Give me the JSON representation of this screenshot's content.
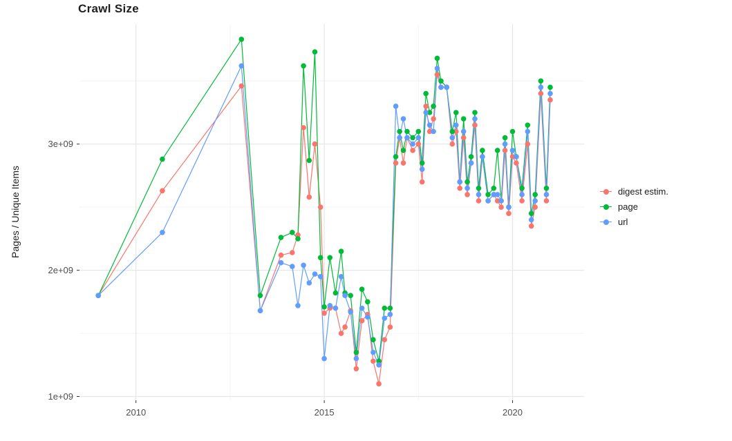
{
  "chart": {
    "title": "Crawl Size",
    "ylabel": "Pages / Unique Items",
    "x_ticks": [
      2010,
      2015,
      2020
    ],
    "x_tick_labels": [
      "2010",
      "2015",
      "2020"
    ],
    "x_minor_ticks": [
      2012.5,
      2017.5
    ],
    "y_ticks": [
      1000000000.0,
      2000000000.0,
      3000000000.0
    ],
    "y_tick_labels": [
      "1e+09",
      "2e+09",
      "3e+09"
    ],
    "y_minor_ticks": [
      1500000000.0,
      2500000000.0,
      3500000000.0
    ],
    "colors": {
      "background": "#ffffff",
      "grid_major": "#e7e7e7",
      "grid_minor": "#f3f3f3",
      "axis_text": "#4d4d4d",
      "tick_mark": "#333333",
      "title": "#1f1f1f"
    }
  },
  "legend": {
    "items": [
      {
        "label": "digest estim.",
        "color": "#F8766D"
      },
      {
        "label": "page",
        "color": "#00BA38"
      },
      {
        "label": "url",
        "color": "#619CFF"
      }
    ]
  },
  "chart_data": {
    "type": "line",
    "title": "Crawl Size",
    "xlabel": "",
    "ylabel": "Pages / Unique Items",
    "xlim": [
      2008.5,
      2021.9
    ],
    "ylim": [
      970000000.0,
      3950000000.0
    ],
    "grid": true,
    "legend_position": "right",
    "x": [
      2009.0,
      2010.7,
      2012.8,
      2013.3,
      2013.85,
      2014.15,
      2014.3,
      2014.45,
      2014.6,
      2014.75,
      2014.9,
      2015.0,
      2015.15,
      2015.3,
      2015.45,
      2015.55,
      2015.7,
      2015.85,
      2016.0,
      2016.15,
      2016.3,
      2016.45,
      2016.6,
      2016.75,
      2016.9,
      2017.0,
      2017.1,
      2017.2,
      2017.35,
      2017.5,
      2017.6,
      2017.7,
      2017.8,
      2017.9,
      2018.0,
      2018.1,
      2018.25,
      2018.4,
      2018.5,
      2018.6,
      2018.7,
      2018.8,
      2018.9,
      2019.0,
      2019.1,
      2019.2,
      2019.35,
      2019.5,
      2019.6,
      2019.7,
      2019.8,
      2019.9,
      2020.0,
      2020.1,
      2020.25,
      2020.4,
      2020.5,
      2020.6,
      2020.75,
      2020.9,
      2021.0
    ],
    "series": [
      {
        "name": "digest estim.",
        "color": "#F8766D",
        "values": [
          1800000000.0,
          2630000000.0,
          3460000000.0,
          1680000000.0,
          2120000000.0,
          2140000000.0,
          2280000000.0,
          3130000000.0,
          2580000000.0,
          3000000000.0,
          2500000000.0,
          1660000000.0,
          1700000000.0,
          1700000000.0,
          1500000000.0,
          1550000000.0,
          1680000000.0,
          1220000000.0,
          1600000000.0,
          1650000000.0,
          1280000000.0,
          1100000000.0,
          1450000000.0,
          1550000000.0,
          2850000000.0,
          3050000000.0,
          2850000000.0,
          3050000000.0,
          2950000000.0,
          3000000000.0,
          2700000000.0,
          3300000000.0,
          3100000000.0,
          3200000000.0,
          3550000000.0,
          3450000000.0,
          3450000000.0,
          3000000000.0,
          3100000000.0,
          2650000000.0,
          3050000000.0,
          2600000000.0,
          2850000000.0,
          3150000000.0,
          2550000000.0,
          2900000000.0,
          2550000000.0,
          2600000000.0,
          2550000000.0,
          2500000000.0,
          2950000000.0,
          2450000000.0,
          2900000000.0,
          2850000000.0,
          2550000000.0,
          3000000000.0,
          2350000000.0,
          2500000000.0,
          3400000000.0,
          2550000000.0,
          3350000000.0
        ]
      },
      {
        "name": "page",
        "color": "#00BA38",
        "values": [
          1800000000.0,
          2880000000.0,
          3830000000.0,
          1800000000.0,
          2260000000.0,
          2300000000.0,
          2250000000.0,
          3620000000.0,
          2870000000.0,
          3730000000.0,
          2100000000.0,
          1710000000.0,
          2100000000.0,
          1820000000.0,
          2150000000.0,
          1820000000.0,
          1800000000.0,
          1350000000.0,
          1850000000.0,
          1750000000.0,
          1450000000.0,
          1280000000.0,
          1700000000.0,
          1700000000.0,
          2900000000.0,
          3100000000.0,
          2950000000.0,
          3100000000.0,
          3050000000.0,
          3100000000.0,
          2850000000.0,
          3400000000.0,
          3250000000.0,
          3300000000.0,
          3680000000.0,
          3500000000.0,
          3450000000.0,
          3100000000.0,
          3250000000.0,
          2700000000.0,
          3200000000.0,
          2700000000.0,
          2900000000.0,
          3250000000.0,
          2650000000.0,
          2950000000.0,
          2600000000.0,
          2650000000.0,
          2950000000.0,
          2550000000.0,
          3050000000.0,
          2500000000.0,
          3100000000.0,
          2900000000.0,
          2650000000.0,
          3150000000.0,
          2450000000.0,
          2600000000.0,
          3500000000.0,
          2650000000.0,
          3450000000.0
        ]
      },
      {
        "name": "url",
        "color": "#619CFF",
        "values": [
          1800000000.0,
          2300000000.0,
          3620000000.0,
          1680000000.0,
          2060000000.0,
          2030000000.0,
          1720000000.0,
          2040000000.0,
          1900000000.0,
          1970000000.0,
          1950000000.0,
          1300000000.0,
          1720000000.0,
          1700000000.0,
          1950000000.0,
          1800000000.0,
          1670000000.0,
          1300000000.0,
          1700000000.0,
          1630000000.0,
          1350000000.0,
          1250000000.0,
          1620000000.0,
          1650000000.0,
          3300000000.0,
          3050000000.0,
          3200000000.0,
          3050000000.0,
          3000000000.0,
          3050000000.0,
          2800000000.0,
          3250000000.0,
          3150000000.0,
          3100000000.0,
          3600000000.0,
          3450000000.0,
          3450000000.0,
          3050000000.0,
          3150000000.0,
          2700000000.0,
          3100000000.0,
          2650000000.0,
          2850000000.0,
          3200000000.0,
          2600000000.0,
          2900000000.0,
          2550000000.0,
          2600000000.0,
          2600000000.0,
          2550000000.0,
          3000000000.0,
          2500000000.0,
          2950000000.0,
          2900000000.0,
          2600000000.0,
          3100000000.0,
          2400000000.0,
          2550000000.0,
          3450000000.0,
          2600000000.0,
          3400000000.0
        ]
      }
    ]
  }
}
